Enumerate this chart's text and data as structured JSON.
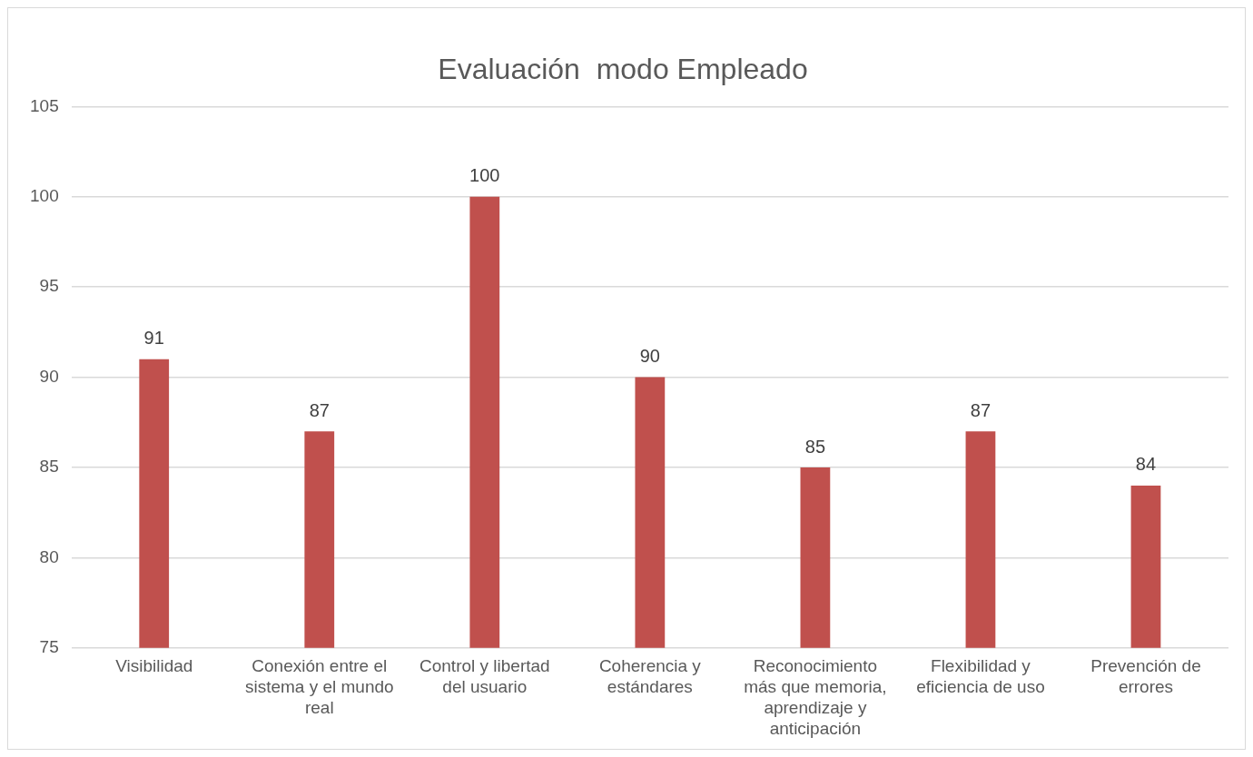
{
  "chart_data": {
    "type": "bar",
    "title": "Evaluación  modo Empleado",
    "categories": [
      "Visibilidad",
      "Conexión entre el sistema y el mundo real",
      "Control y libertad del usuario",
      "Coherencia y estándares",
      "Reconocimiento más que memoria, aprendizaje y anticipación",
      "Flexibilidad y eficiencia de uso",
      "Prevención de errores"
    ],
    "values": [
      91,
      87,
      100,
      90,
      85,
      87,
      84
    ],
    "color": "#c0504d",
    "ylim": [
      75,
      105
    ],
    "yticks": [
      75,
      80,
      85,
      90,
      95,
      100,
      105
    ],
    "grid": "y",
    "data_labels": true,
    "legend": false
  }
}
